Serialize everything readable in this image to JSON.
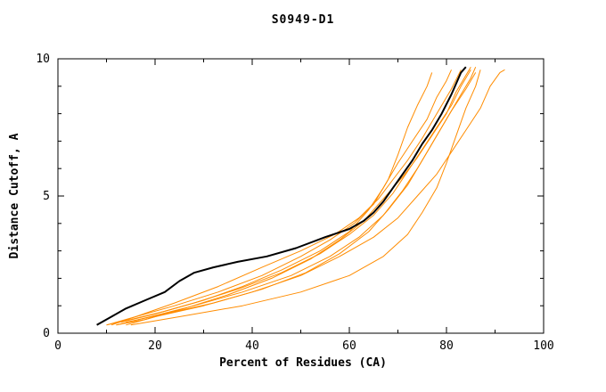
{
  "chart_data": {
    "type": "line",
    "title": "S0949-D1",
    "xlabel": "Percent of Residues (CA)",
    "ylabel": "Distance Cutoff, A",
    "xlim": [
      0,
      100
    ],
    "ylim": [
      0,
      10
    ],
    "xticks": [
      0,
      20,
      40,
      60,
      80,
      100
    ],
    "yticks": [
      0,
      5,
      10
    ],
    "x_minor_step": 10,
    "y_minor_step": 1,
    "grid": false,
    "legend_position": "none",
    "colors": {
      "reference": "#000000",
      "models": "#ff8c00"
    },
    "series": [
      {
        "name": "model-1",
        "color": "#ff8c00",
        "width": 1,
        "x": [
          10,
          15,
          22,
          30,
          38,
          46,
          54,
          60,
          64,
          67,
          70,
          73,
          76,
          78,
          80,
          81
        ],
        "y": [
          0.3,
          0.5,
          0.8,
          1.2,
          1.7,
          2.3,
          3.0,
          3.7,
          4.5,
          5.3,
          6.2,
          7.0,
          7.8,
          8.6,
          9.2,
          9.6
        ]
      },
      {
        "name": "model-2",
        "color": "#ff8c00",
        "width": 1,
        "x": [
          12,
          18,
          26,
          35,
          44,
          52,
          58,
          63,
          67,
          71,
          74,
          77,
          80,
          82,
          84,
          85
        ],
        "y": [
          0.3,
          0.5,
          0.9,
          1.4,
          2.0,
          2.7,
          3.4,
          4.1,
          4.9,
          5.7,
          6.4,
          7.2,
          8.0,
          8.8,
          9.4,
          9.7
        ]
      },
      {
        "name": "model-3",
        "color": "#ff8c00",
        "width": 1,
        "x": [
          14,
          20,
          30,
          40,
          50,
          58,
          65,
          70,
          74,
          78,
          81,
          84,
          87,
          89,
          91,
          92
        ],
        "y": [
          0.3,
          0.6,
          1.0,
          1.5,
          2.1,
          2.8,
          3.5,
          4.2,
          5.0,
          5.8,
          6.6,
          7.4,
          8.2,
          9.0,
          9.5,
          9.6
        ]
      },
      {
        "name": "model-4",
        "color": "#ff8c00",
        "width": 1,
        "x": [
          11,
          16,
          24,
          33,
          42,
          50,
          56,
          61,
          65,
          68,
          70,
          72,
          74,
          76,
          77
        ],
        "y": [
          0.3,
          0.6,
          1.0,
          1.5,
          2.1,
          2.8,
          3.4,
          4.0,
          4.7,
          5.6,
          6.5,
          7.5,
          8.3,
          9.0,
          9.5
        ]
      },
      {
        "name": "model-5",
        "color": "#ff8c00",
        "width": 1,
        "x": [
          13,
          20,
          28,
          37,
          46,
          54,
          60,
          65,
          69,
          72,
          75,
          78,
          81,
          83,
          85
        ],
        "y": [
          0.4,
          0.7,
          1.1,
          1.6,
          2.2,
          2.9,
          3.6,
          4.3,
          5.1,
          5.9,
          6.7,
          7.5,
          8.3,
          9.0,
          9.6
        ]
      },
      {
        "name": "model-6",
        "color": "#ff8c00",
        "width": 1,
        "x": [
          15,
          25,
          38,
          50,
          60,
          67,
          72,
          75,
          78,
          80,
          82,
          84,
          86,
          87
        ],
        "y": [
          0.3,
          0.6,
          1.0,
          1.5,
          2.1,
          2.8,
          3.6,
          4.4,
          5.3,
          6.2,
          7.2,
          8.2,
          9.0,
          9.6
        ]
      },
      {
        "name": "model-7",
        "color": "#ff8c00",
        "width": 1,
        "x": [
          12,
          19,
          28,
          38,
          48,
          56,
          62,
          67,
          71,
          74,
          77,
          80,
          83,
          85,
          86
        ],
        "y": [
          0.3,
          0.6,
          1.0,
          1.5,
          2.1,
          2.8,
          3.5,
          4.3,
          5.2,
          6.0,
          6.9,
          7.8,
          8.7,
          9.3,
          9.7
        ]
      },
      {
        "name": "model-8",
        "color": "#ff8c00",
        "width": 1,
        "x": [
          14,
          22,
          32,
          42,
          51,
          58,
          64,
          68,
          72,
          75,
          78,
          81,
          84,
          86
        ],
        "y": [
          0.4,
          0.7,
          1.1,
          1.6,
          2.2,
          2.9,
          3.7,
          4.5,
          5.4,
          6.3,
          7.2,
          8.1,
          8.9,
          9.5
        ]
      },
      {
        "name": "model-9",
        "color": "#ff8c00",
        "width": 1,
        "x": [
          10,
          16,
          24,
          33,
          42,
          50,
          57,
          62,
          66,
          69,
          72,
          75,
          78,
          81,
          83
        ],
        "y": [
          0.3,
          0.6,
          1.1,
          1.7,
          2.4,
          3.0,
          3.6,
          4.2,
          4.9,
          5.6,
          6.3,
          7.1,
          8.0,
          8.9,
          9.6
        ]
      },
      {
        "name": "reference",
        "color": "#000000",
        "width": 2,
        "x": [
          8,
          11,
          14,
          18,
          22,
          25,
          28,
          32,
          37,
          43,
          49,
          55,
          60,
          63,
          65,
          67,
          69,
          71,
          73,
          75,
          77,
          79,
          81,
          82,
          83,
          84
        ],
        "y": [
          0.3,
          0.6,
          0.9,
          1.2,
          1.5,
          1.9,
          2.2,
          2.4,
          2.6,
          2.8,
          3.1,
          3.5,
          3.8,
          4.1,
          4.4,
          4.8,
          5.3,
          5.8,
          6.3,
          6.9,
          7.4,
          8.0,
          8.7,
          9.1,
          9.5,
          9.7
        ]
      }
    ]
  }
}
